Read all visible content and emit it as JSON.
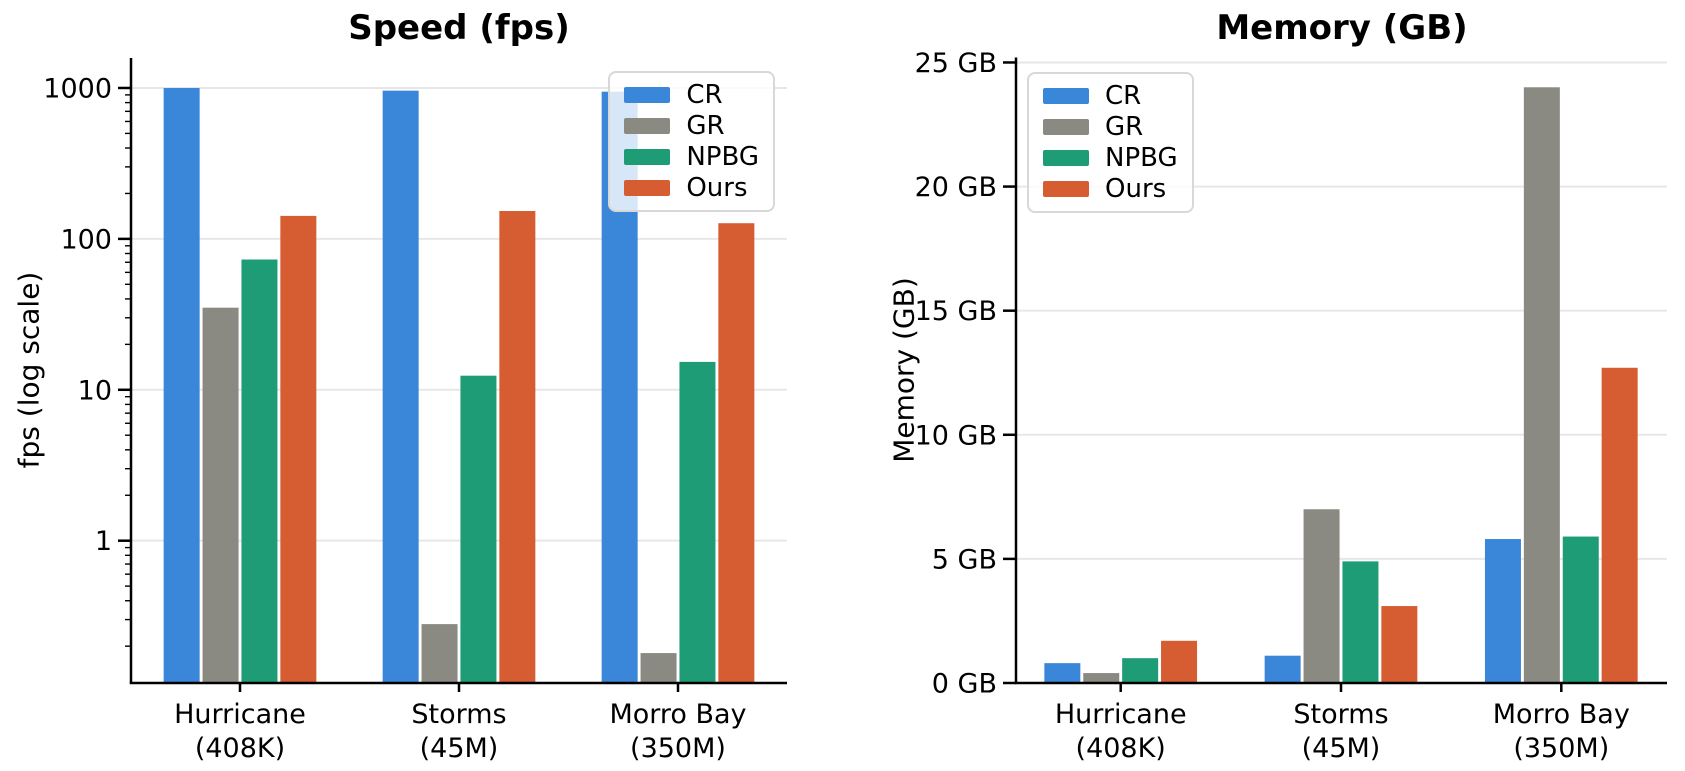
{
  "figure": {
    "background": "#ffffff",
    "text_color": "#000000",
    "grid_color": "#e7e7e7",
    "axis_color": "#000000"
  },
  "legend": {
    "series": [
      "CR",
      "GR",
      "NPBG",
      "Ours"
    ]
  },
  "colors": {
    "CR": "#3a87d9",
    "GR": "#8a8a82",
    "NPBG": "#1e9c75",
    "Ours": "#d65c31"
  },
  "chart_data": [
    {
      "id": "speed",
      "type": "bar",
      "title": "Speed (fps)",
      "ylabel": "fps (log scale)",
      "xlabel": "",
      "yscale": "log",
      "ylim": [
        0.114,
        1580
      ],
      "yticks": [
        1,
        10,
        100,
        1000
      ],
      "ytick_labels": [
        "1",
        "10",
        "100",
        "1000"
      ],
      "grid": true,
      "legend_position": "upper right",
      "categories": [
        {
          "line1": "Hurricane",
          "line2": "(408K)"
        },
        {
          "line1": "Storms",
          "line2": "(45M)"
        },
        {
          "line1": "Morro Bay",
          "line2": "(350M)"
        }
      ],
      "series": [
        {
          "name": "CR",
          "values": [
            1000,
            960,
            945
          ]
        },
        {
          "name": "GR",
          "values": [
            35,
            0.28,
            0.18
          ]
        },
        {
          "name": "NPBG",
          "values": [
            73,
            12.4,
            15.3
          ]
        },
        {
          "name": "Ours",
          "values": [
            142,
            153,
            127
          ]
        }
      ]
    },
    {
      "id": "memory",
      "type": "bar",
      "title": "Memory (GB)",
      "ylabel": "Memory (GB)",
      "xlabel": "",
      "yscale": "linear",
      "ylim": [
        0,
        25.2
      ],
      "yticks": [
        0,
        5,
        10,
        15,
        20,
        25
      ],
      "ytick_labels": [
        "0 GB",
        "5 GB",
        "10 GB",
        "15 GB",
        "20 GB",
        "25 GB"
      ],
      "grid": true,
      "legend_position": "upper left",
      "categories": [
        {
          "line1": "Hurricane",
          "line2": "(408K)"
        },
        {
          "line1": "Storms",
          "line2": "(45M)"
        },
        {
          "line1": "Morro Bay",
          "line2": "(350M)"
        }
      ],
      "series": [
        {
          "name": "CR",
          "values": [
            0.8,
            1.1,
            5.8
          ]
        },
        {
          "name": "GR",
          "values": [
            0.4,
            7.0,
            24.0
          ]
        },
        {
          "name": "NPBG",
          "values": [
            1.0,
            4.9,
            5.9
          ]
        },
        {
          "name": "Ours",
          "values": [
            1.7,
            3.1,
            12.7
          ]
        }
      ]
    }
  ]
}
